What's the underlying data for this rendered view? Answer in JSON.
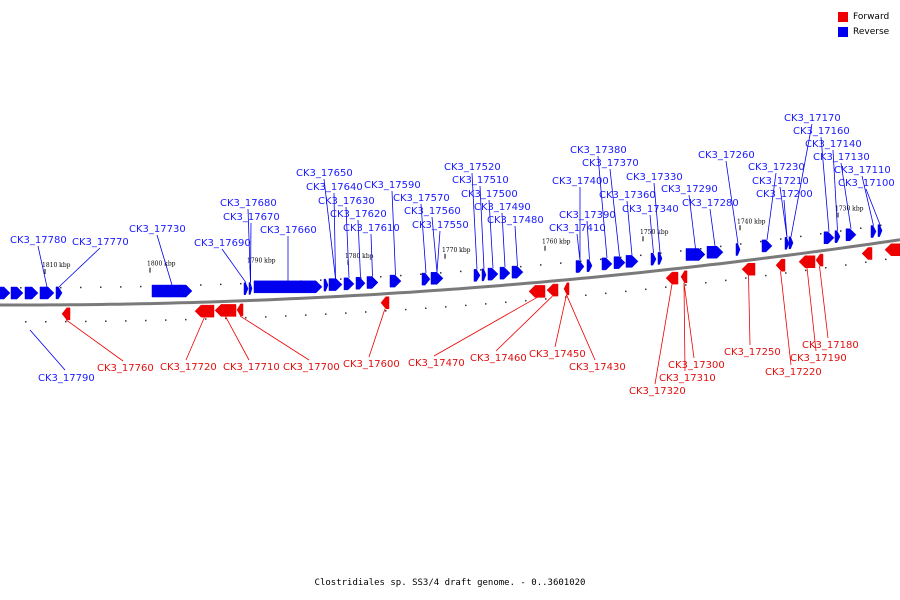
{
  "legend": {
    "forward": {
      "label": "Forward",
      "color": "#ee0000"
    },
    "reverse": {
      "label": "Reverse",
      "color": "#0000ee"
    }
  },
  "caption": "Clostridiales sp. SS3/4 draft genome. - 0..3601020",
  "ticks": [
    "1810 kbp",
    "1800 kbp",
    "1790 kbp",
    "1780 kbp",
    "1770 kbp",
    "1760 kbp",
    "1750 kbp",
    "1740 kbp",
    "1730 kbp"
  ],
  "reverse_labels": [
    "CK3_17780",
    "CK3_17770",
    "CK3_17730",
    "CK3_17690",
    "CK3_17680",
    "CK3_17670",
    "CK3_17660",
    "CK3_17650",
    "CK3_17640",
    "CK3_17630",
    "CK3_17620",
    "CK3_17610",
    "CK3_17590",
    "CK3_17570",
    "CK3_17560",
    "CK3_17550",
    "CK3_17520",
    "CK3_17510",
    "CK3_17500",
    "CK3_17490",
    "CK3_17480",
    "CK3_17400",
    "CK3_17390",
    "CK3_17410",
    "CK3_17380",
    "CK3_17370",
    "CK3_17360",
    "CK3_17340",
    "CK3_17330",
    "CK3_17290",
    "CK3_17280",
    "CK3_17260",
    "CK3_17230",
    "CK3_17210",
    "CK3_17200",
    "CK3_17170",
    "CK3_17160",
    "CK3_17140",
    "CK3_17130",
    "CK3_17110",
    "CK3_17100",
    "CK3_17790"
  ],
  "forward_labels": [
    "CK3_17760",
    "CK3_17720",
    "CK3_17710",
    "CK3_17700",
    "CK3_17600",
    "CK3_17470",
    "CK3_17460",
    "CK3_17450",
    "CK3_17430",
    "CK3_17320",
    "CK3_17310",
    "CK3_17300",
    "CK3_17250",
    "CK3_17220",
    "CK3_17190",
    "CK3_17180"
  ]
}
